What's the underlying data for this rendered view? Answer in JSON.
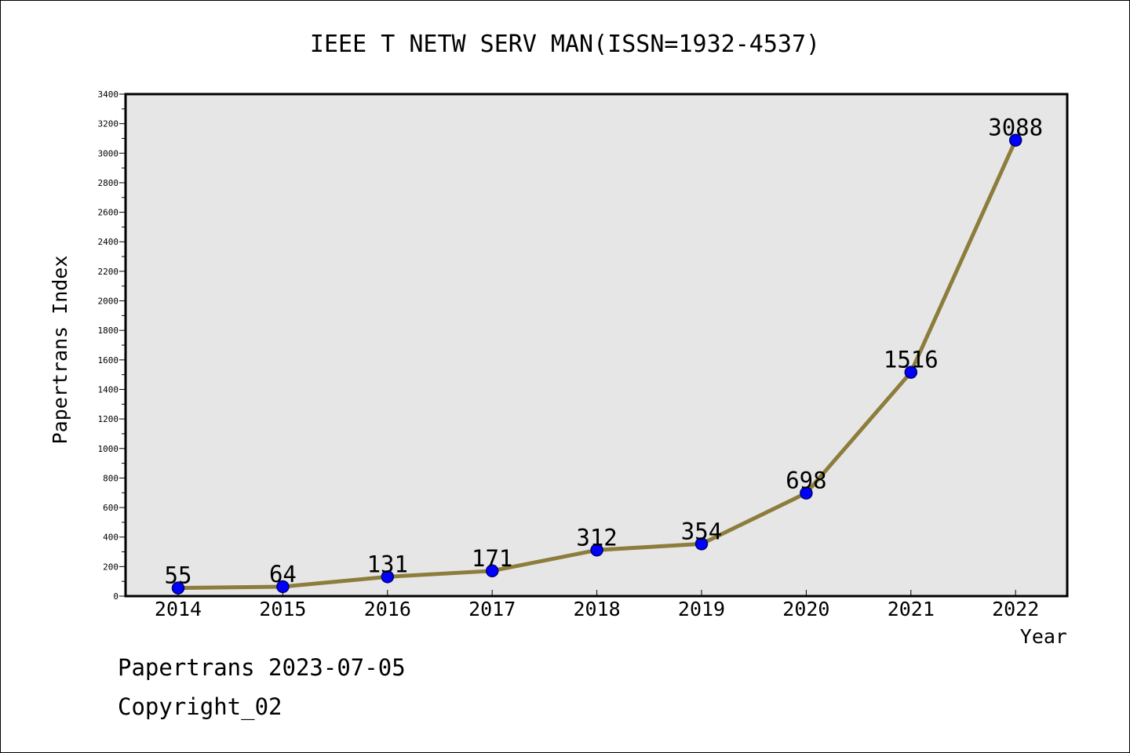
{
  "chart_data": {
    "type": "line",
    "title": "IEEE T NETW SERV MAN(ISSN=1932-4537)",
    "xlabel": "Year",
    "ylabel": "Papertrans Index",
    "categories": [
      "2014",
      "2015",
      "2016",
      "2017",
      "2018",
      "2019",
      "2020",
      "2021",
      "2022"
    ],
    "values": [
      55,
      64,
      131,
      171,
      312,
      354,
      698,
      1516,
      3088
    ],
    "data_labels": [
      "55",
      "64",
      "131",
      "171",
      "312",
      "354",
      "698",
      "1516",
      "3088"
    ],
    "ylim": [
      0,
      3400
    ],
    "y_ticks": [
      0,
      200,
      400,
      600,
      800,
      1000,
      1200,
      1400,
      1600,
      1800,
      2000,
      2200,
      2400,
      2600,
      2800,
      3000,
      3200,
      3400
    ],
    "y_tick_labels": [
      "0",
      "200",
      "400",
      "600",
      "800",
      "1000",
      "1200",
      "1400",
      "1600",
      "1800",
      "2000",
      "2200",
      "2400",
      "2600",
      "2800",
      "3000",
      "3200",
      "3400"
    ],
    "grid": false,
    "colors": {
      "line": "#8c7d3c",
      "marker_fill": "#0000ff",
      "marker_edge": "#00006e",
      "plot_background": "#e6e6e6"
    }
  },
  "footer": {
    "date_line": "Papertrans 2023-07-05",
    "copyright_line": "Copyright_02"
  }
}
